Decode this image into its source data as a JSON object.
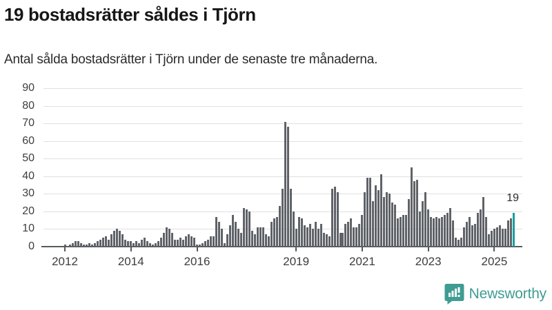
{
  "title": "19 bostadsrätter såldes i Tjörn",
  "subtitle": "Antal sålda bostadsrätter i Tjörn under de senaste tre månaderna.",
  "branding": {
    "logo_text": "Newsworthy",
    "logo_color": "#3F9C92",
    "logo_icon": "bar-chart-speech-bubble"
  },
  "colors": {
    "bar": "#5F6368",
    "highlight_bar": "#16A0A0",
    "gridline": "#e0e0e0",
    "axis": "#555a5e",
    "text": "#2b2b2b"
  },
  "chart_data": {
    "type": "bar",
    "title": "19 bostadsrätter såldes i Tjörn",
    "subtitle": "Antal sålda bostadsrätter i Tjörn under de senaste tre månaderna.",
    "xlabel": "",
    "ylabel": "",
    "ylim": [
      0,
      90
    ],
    "grid": true,
    "frequency": "monthly",
    "start_month": "2012-01",
    "end_month": "2025-08",
    "y_ticks": [
      0,
      10,
      20,
      30,
      40,
      50,
      60,
      70,
      80,
      90
    ],
    "x_tick_labels": [
      "2012",
      "2014",
      "2016",
      "2019",
      "2021",
      "2023",
      "2025"
    ],
    "highlight_last_bar": true,
    "last_value_label": "19",
    "values": [
      1,
      0,
      1,
      2,
      3,
      3,
      2,
      1,
      1,
      2,
      1,
      2,
      3,
      4,
      5,
      6,
      4,
      7,
      9,
      10,
      9,
      7,
      4,
      3,
      3,
      2,
      3,
      2,
      4,
      5,
      3,
      2,
      1,
      2,
      3,
      5,
      8,
      11,
      10,
      8,
      4,
      4,
      5,
      4,
      6,
      7,
      6,
      5,
      1,
      1,
      2,
      3,
      4,
      6,
      6,
      17,
      14,
      10,
      2,
      7,
      12,
      18,
      14,
      10,
      8,
      22,
      21,
      20,
      9,
      7,
      11,
      11,
      11,
      7,
      6,
      14,
      16,
      17,
      23,
      33,
      71,
      68,
      33,
      20,
      10,
      17,
      16,
      12,
      11,
      13,
      10,
      14,
      10,
      13,
      8,
      7,
      6,
      33,
      34,
      31,
      8,
      8,
      13,
      14,
      16,
      11,
      11,
      13,
      18,
      31,
      39,
      39,
      26,
      35,
      32,
      41,
      28,
      31,
      30,
      25,
      24,
      16,
      17,
      18,
      18,
      27,
      45,
      37,
      38,
      20,
      26,
      31,
      21,
      17,
      16,
      17,
      16,
      17,
      18,
      19,
      22,
      15,
      5,
      4,
      5,
      11,
      14,
      17,
      12,
      13,
      19,
      21,
      28,
      17,
      7,
      9,
      10,
      11,
      12,
      10,
      10,
      15,
      16,
      19
    ]
  }
}
